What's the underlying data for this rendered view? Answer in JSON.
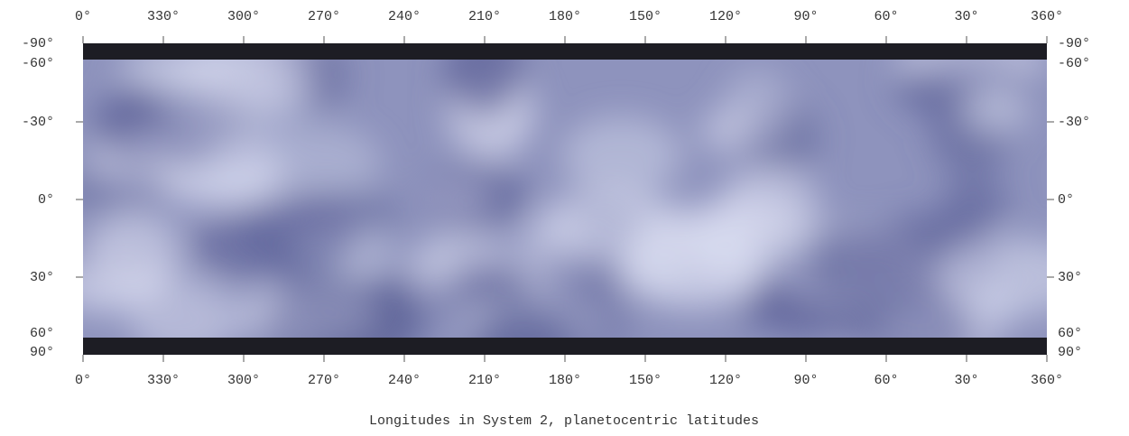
{
  "map": {
    "top_ticks": [
      "0°",
      "330°",
      "300°",
      "270°",
      "240°",
      "210°",
      "180°",
      "150°",
      "120°",
      "90°",
      "60°",
      "30°",
      "360°"
    ],
    "bottom_ticks": [
      "0°",
      "330°",
      "300°",
      "270°",
      "240°",
      "210°",
      "180°",
      "150°",
      "120°",
      "90°",
      "60°",
      "30°",
      "360°"
    ],
    "left_ticks": [
      "-90°",
      "-60°",
      "-30°",
      "0°",
      "30°",
      "60°",
      "90°"
    ],
    "right_ticks": [
      "-90°",
      "-60°",
      "-30°",
      "0°",
      "30°",
      "60°",
      "90°"
    ],
    "caption": "Longitudes in System 2, planetocentric latitudes"
  }
}
